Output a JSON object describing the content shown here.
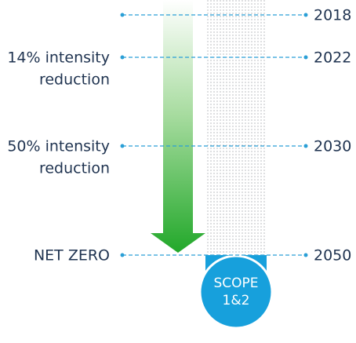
{
  "milestones": [
    {
      "year": "2018",
      "label": null
    },
    {
      "year": "2022",
      "label": [
        "14% intensity",
        "reduction"
      ]
    },
    {
      "year": "2030",
      "label": [
        "50% intensity",
        "reduction"
      ]
    },
    {
      "year": "2050",
      "label": [
        "NET ZERO"
      ]
    }
  ],
  "badge": [
    "SCOPE",
    "1&2"
  ]
}
